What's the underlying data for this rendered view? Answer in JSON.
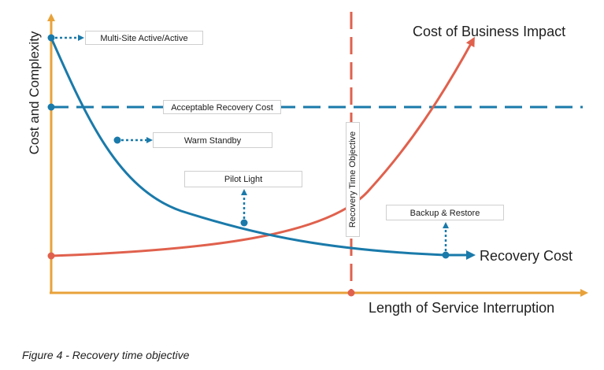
{
  "figure": {
    "y_axis_label": "Cost and Complexity",
    "x_axis_label": "Length of Service Interruption",
    "rto_label": "Recovery Time Objective",
    "acceptable_cost_label": "Acceptable Recovery Cost",
    "business_impact_label": "Cost of Business Impact",
    "recovery_cost_label": "Recovery Cost",
    "strategies": {
      "multi_site": "Multi-Site Active/Active",
      "warm_standby": "Warm Standby",
      "pilot_light": "Pilot Light",
      "backup_restore": "Backup & Restore"
    },
    "caption": "Figure 4 - Recovery time objective",
    "colors": {
      "axis": "#e8a23a",
      "recovery_cost": "#1a7aaa",
      "business_impact": "#e0614d",
      "rto_line": "#e0614d",
      "acceptable_cost": "#1a7aaa"
    }
  }
}
